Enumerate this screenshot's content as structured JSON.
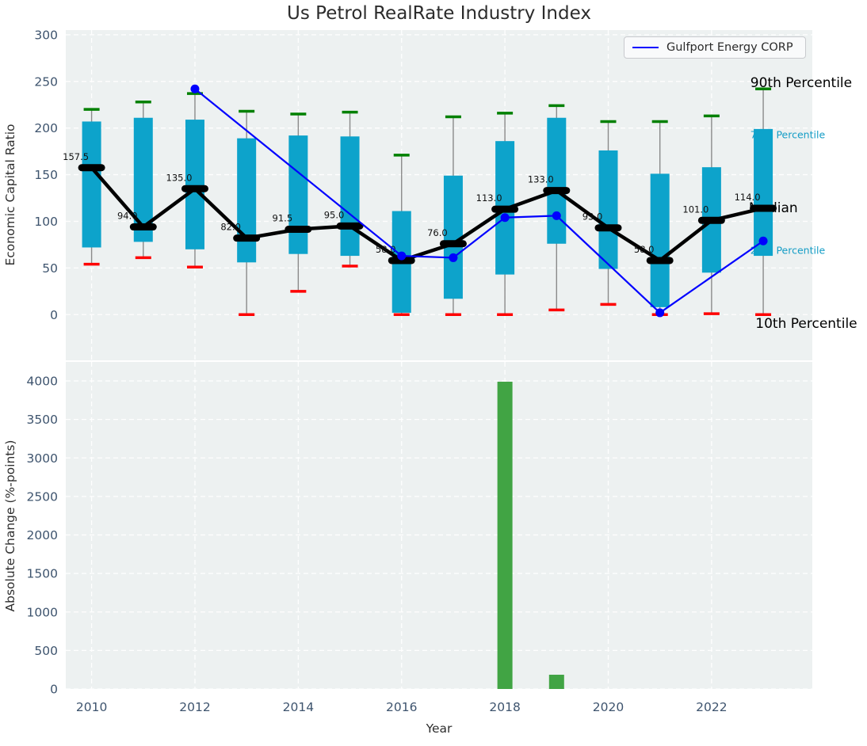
{
  "title": "Us Petrol RealRate Industry Index",
  "legend": {
    "series_label": "Gulfport Energy CORP",
    "line_color": "#0000ff"
  },
  "axes": {
    "top": {
      "ylabel": "Economic Capital Ratio",
      "yticks": [
        300,
        250,
        200,
        150,
        100,
        50,
        0
      ]
    },
    "bottom": {
      "ylabel": "Absolute Change (%-points)",
      "xlabel": "Year",
      "yticks": [
        4000,
        3500,
        3000,
        2500,
        2000,
        1500,
        1000,
        500,
        0
      ],
      "xticks": [
        2010,
        2012,
        2014,
        2016,
        2018,
        2020,
        2022
      ]
    }
  },
  "colors": {
    "box": "#0da3cb",
    "whisker": "#8a8a8a",
    "cap_high": "#008000",
    "cap_low": "#fe0000",
    "median": "#000000",
    "series_line": "#0000ff",
    "bottom_bar": "#41a444",
    "plot_bg": "#edf1f1",
    "grid": "#ffffff",
    "tick_label": "#3e546e",
    "annotation_teal": "#149dc6"
  },
  "annotations": [
    {
      "text": "90th Percentile",
      "x_year": 2022.75,
      "y_value": 249,
      "color": "#000000",
      "size": 17
    },
    {
      "text": "75th Percentile",
      "x_year": 2022.75,
      "y_value": 193,
      "color": "#149dc6",
      "size": 12.5
    },
    {
      "text": "Median",
      "x_year": 2022.72,
      "y_value": 115,
      "color": "#000000",
      "size": 17
    },
    {
      "text": "25th Percentile",
      "x_year": 2022.75,
      "y_value": 69,
      "color": "#149dc6",
      "size": 12.5
    },
    {
      "text": "10th Percentile",
      "x_year": 2022.85,
      "y_value": -9,
      "color": "#000000",
      "size": 17
    }
  ],
  "chart_data": [
    {
      "type": "box-timeseries",
      "title": "Us Petrol RealRate Industry Index",
      "ylabel": "Economic Capital Ratio",
      "xlim": [
        2009.5,
        2023.95
      ],
      "ylim": [
        -49,
        305
      ],
      "grid": true,
      "years": [
        2010,
        2011,
        2012,
        2013,
        2014,
        2015,
        2016,
        2017,
        2018,
        2019,
        2020,
        2021,
        2022,
        2023
      ],
      "p90": [
        220,
        228,
        237,
        218,
        215,
        217,
        171,
        212,
        216,
        224,
        207,
        207,
        213,
        242
      ],
      "p75": [
        207,
        211,
        209,
        189,
        192,
        191,
        111,
        149,
        186,
        211,
        176,
        151,
        158,
        199
      ],
      "median": [
        157.5,
        94,
        135,
        82,
        91.5,
        95,
        58,
        76,
        113,
        133,
        93,
        58,
        101,
        114
      ],
      "p25": [
        72,
        78,
        70,
        56,
        65,
        63,
        2,
        17,
        43,
        76,
        49,
        8,
        45,
        63
      ],
      "p10": [
        54,
        61,
        51,
        0,
        25,
        52,
        0,
        0,
        0,
        5,
        11,
        0,
        1,
        0
      ],
      "median_labels": [
        "157.5",
        "94.0",
        "135.0",
        "82.0",
        "91.5",
        "95.0",
        "58.0",
        "76.0",
        "113.0",
        "133.0",
        "93.0",
        "58.0",
        "101.0",
        "114.0"
      ],
      "series": [
        {
          "name": "Gulfport Energy CORP",
          "color": "#0000ff",
          "points": [
            [
              2012,
              242
            ],
            [
              2016,
              63
            ],
            [
              2017,
              61
            ],
            [
              2018,
              104
            ],
            [
              2019,
              106
            ],
            [
              2021,
              2
            ],
            [
              2023,
              79
            ]
          ]
        }
      ]
    },
    {
      "type": "bar",
      "ylabel": "Absolute Change (%-points)",
      "xlabel": "Year",
      "xlim": [
        2009.5,
        2023.95
      ],
      "ylim": [
        0,
        4247
      ],
      "grid": true,
      "categories": [
        2018,
        2019
      ],
      "values": [
        3990,
        185
      ],
      "bar_color": "#41a444"
    }
  ]
}
